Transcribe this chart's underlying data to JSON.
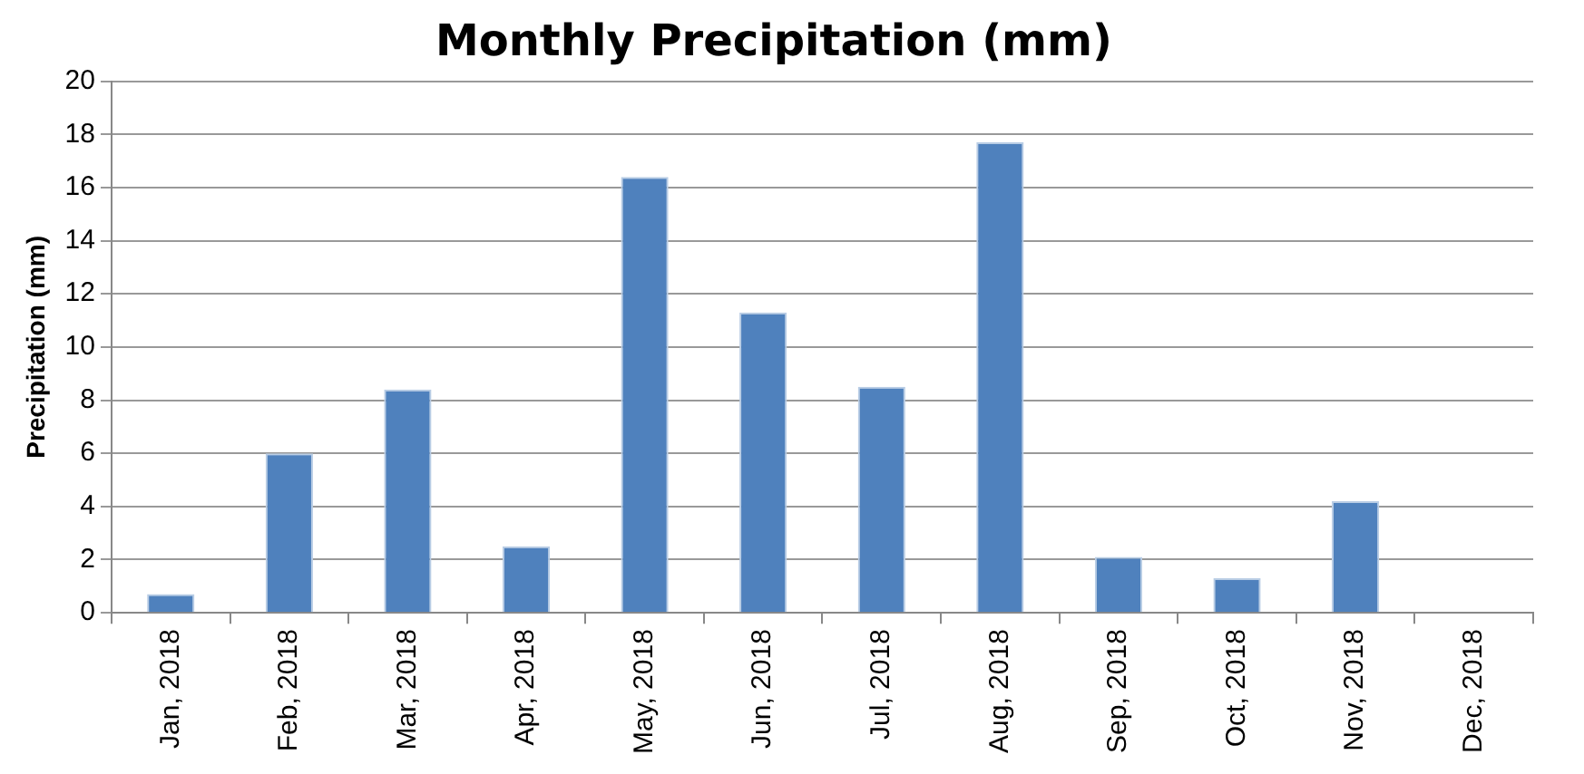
{
  "chart_data": {
    "type": "bar",
    "title": "Monthly Precipitation (mm)",
    "ylabel": "Precipitation (mm)",
    "categories": [
      "Jan, 2018",
      "Feb, 2018",
      "Mar, 2018",
      "Apr, 2018",
      "May, 2018",
      "Jun, 2018",
      "Jul, 2018",
      "Aug, 2018",
      "Sep, 2018",
      "Oct, 2018",
      "Nov, 2018",
      "Dec, 2018"
    ],
    "values": [
      0.7,
      6.0,
      8.4,
      2.5,
      16.4,
      11.3,
      8.5,
      17.7,
      2.1,
      1.3,
      4.2,
      0
    ],
    "color": "#4f81bd",
    "ylim": [
      0,
      20
    ],
    "yticks": [
      0,
      2,
      4,
      6,
      8,
      10,
      12,
      14,
      16,
      18,
      20
    ],
    "grid": "y"
  }
}
